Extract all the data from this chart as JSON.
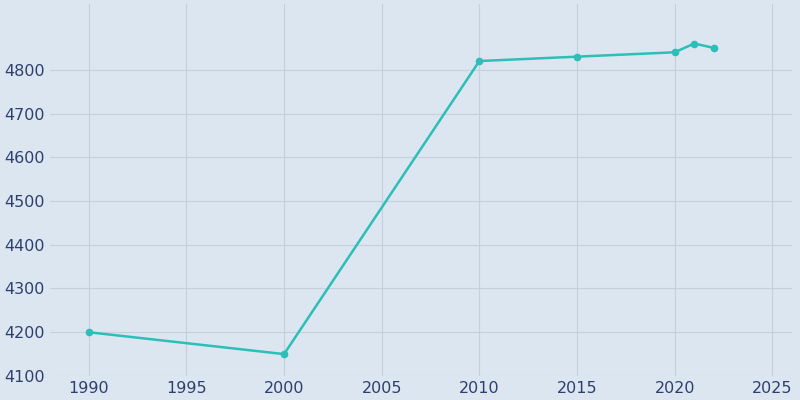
{
  "years": [
    1990,
    2000,
    2010,
    2015,
    2020,
    2021,
    2022
  ],
  "population": [
    4200,
    4150,
    4820,
    4830,
    4840,
    4860,
    4850
  ],
  "line_color": "#2bbfb8",
  "marker_color": "#2bbfb8",
  "figure_color": "#dce6f0",
  "plot_bg_color": "#dce6f0",
  "ylabel": "",
  "xlabel": "",
  "xlim": [
    1988,
    2026
  ],
  "ylim": [
    4100,
    4950
  ],
  "yticks": [
    4100,
    4200,
    4300,
    4400,
    4500,
    4600,
    4700,
    4800
  ],
  "xticks": [
    1990,
    1995,
    2000,
    2005,
    2010,
    2015,
    2020,
    2025
  ],
  "grid_color": "#c4d0de",
  "tick_label_color": "#2e3f6e",
  "tick_fontsize": 11.5,
  "line_width": 1.8,
  "marker_size": 4.5
}
